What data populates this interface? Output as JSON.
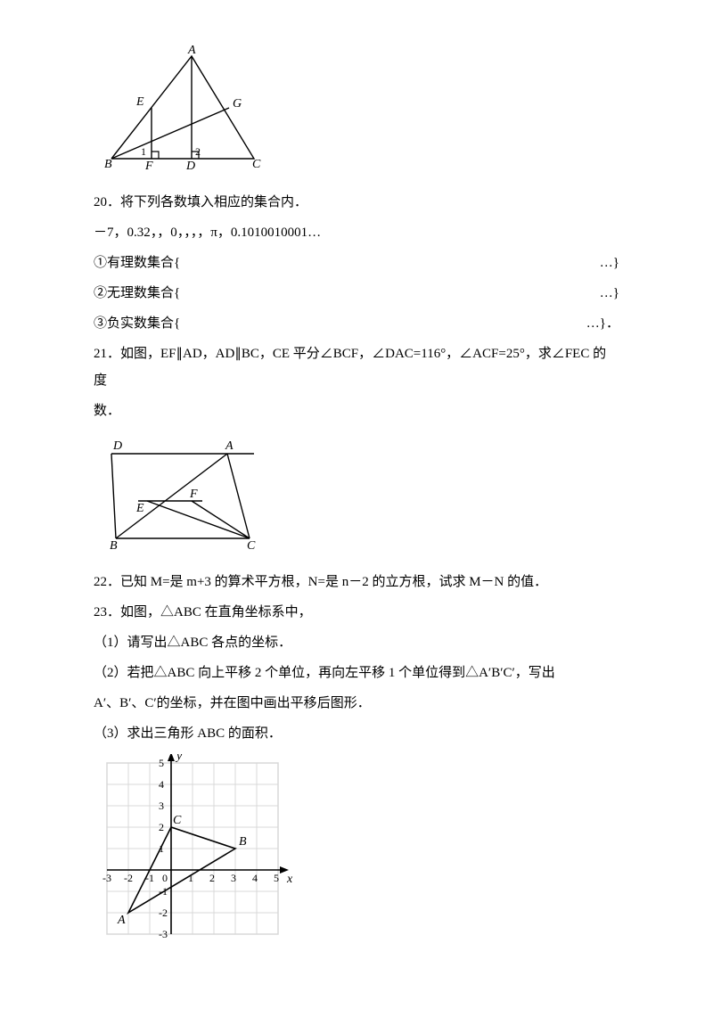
{
  "fig1": {
    "labels": {
      "A": "A",
      "B": "B",
      "C": "C",
      "D": "D",
      "E": "E",
      "F": "F",
      "G": "G",
      "one": "1",
      "two": "2"
    },
    "geom": {
      "A": [
        110,
        15
      ],
      "B": [
        20,
        130
      ],
      "C": [
        180,
        130
      ],
      "D": [
        110,
        130
      ],
      "F": [
        65,
        130
      ],
      "E": [
        65,
        73
      ],
      "G": [
        152,
        73
      ]
    },
    "stroke": "#000000",
    "bg": "#ffffff"
  },
  "q20": {
    "stem": "20．将下列各数填入相应的集合内．",
    "list": "－7，0.32，，0，，，，π，0.1010010001…",
    "rows": [
      {
        "label": "①有理数集合{",
        "end": "…}"
      },
      {
        "label": "②无理数集合{",
        "end": "…}"
      },
      {
        "label": "③负实数集合{",
        "end": "…}．"
      }
    ]
  },
  "q21": {
    "stem1": "21．如图，EF∥AD，AD∥BC，CE 平分∠BCF，∠DAC=116°，∠ACF=25°，求∠FEC 的度",
    "stem2": "数．"
  },
  "fig2": {
    "labels": {
      "A": "A",
      "B": "B",
      "C": "C",
      "D": "D",
      "E": "E",
      "F": "F"
    },
    "geom": {
      "D": [
        25,
        20
      ],
      "A": [
        150,
        20
      ],
      "B": [
        25,
        120
      ],
      "C": [
        175,
        120
      ],
      "E": [
        60,
        78
      ],
      "F": [
        110,
        78
      ]
    },
    "stroke": "#000000"
  },
  "q22": {
    "stem": "22．已知 M=是 m+3 的算术平方根，N=是 n－2 的立方根，试求 M－N 的值．"
  },
  "q23": {
    "stem": "23．如图，△ABC 在直角坐标系中，",
    "p1": "（1）请写出△ABC 各点的坐标．",
    "p2": "（2）若把△ABC 向上平移 2 个单位，再向左平移 1 个单位得到△A′B′C′，写出",
    "p2b": "A′、B′、C′的坐标，并在图中画出平移后图形．",
    "p3": "（3）求出三角形 ABC 的面积．"
  },
  "fig3": {
    "grid": {
      "xmin": -3,
      "xmax": 5,
      "ymin": -3,
      "ymax": 5,
      "xticks": [
        -3,
        -2,
        -1,
        0,
        1,
        2,
        3,
        4,
        5
      ],
      "yticks": [
        -3,
        -2,
        -1,
        1,
        2,
        3,
        4,
        5
      ],
      "background": "#ffffff",
      "grid_color": "#d8d8d8",
      "axis_color": "#000000",
      "tick_font": 12
    },
    "triangle": {
      "A": [
        -2,
        -2
      ],
      "B": [
        3,
        1
      ],
      "C": [
        0,
        2
      ],
      "vertex_labels": {
        "A": "A",
        "B": "B",
        "C": "C"
      }
    },
    "axis_labels": {
      "x": "x",
      "y": "y"
    }
  }
}
